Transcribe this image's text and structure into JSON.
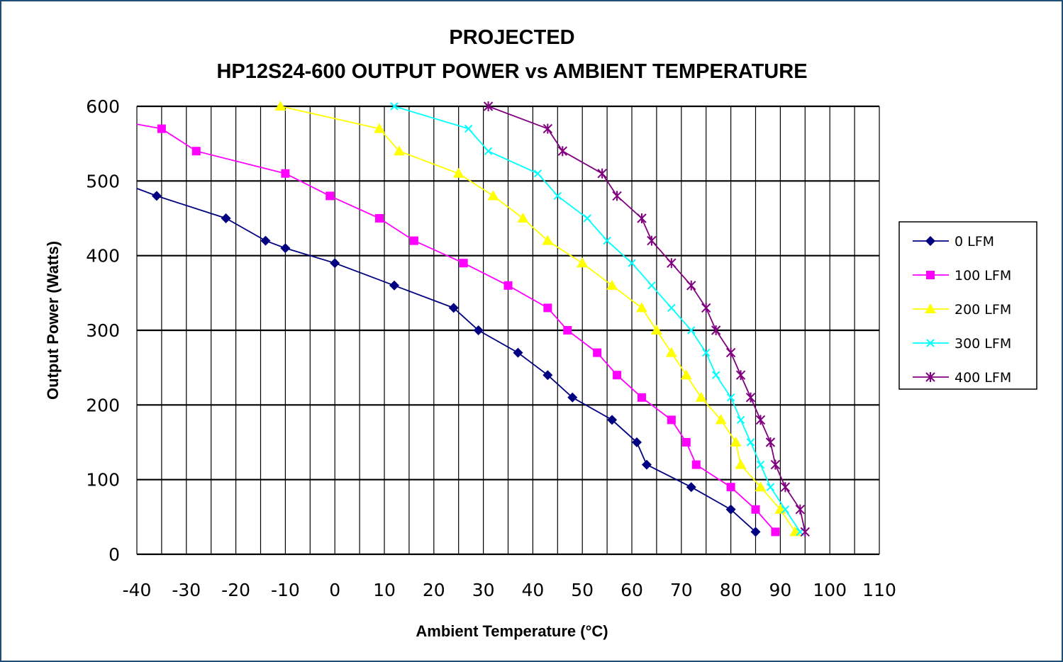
{
  "chart_data": {
    "type": "line",
    "title": [
      "PROJECTED",
      "HP12S24-600 OUTPUT POWER vs AMBIENT TEMPERATURE"
    ],
    "xlabel": "Ambient Temperature (°C)",
    "ylabel": "Output Power (Watts)",
    "xlim": [
      -40,
      110
    ],
    "ylim": [
      0,
      600
    ],
    "x_major_step": 10,
    "x_minor_step": 5,
    "y_major_step": 100,
    "x_ticks": [
      "-40",
      "-30",
      "-20",
      "-10",
      "0",
      "10",
      "20",
      "30",
      "40",
      "50",
      "60",
      "70",
      "80",
      "90",
      "100",
      "110"
    ],
    "y_ticks": [
      "0",
      "100",
      "200",
      "300",
      "400",
      "500",
      "600"
    ],
    "grid": true,
    "legend_position": "right",
    "series": [
      {
        "name": "0 LFM",
        "color": "#000080",
        "marker": "diamond",
        "points": [
          [
            -40,
            490
          ],
          [
            -36,
            480
          ],
          [
            -22,
            450
          ],
          [
            -14,
            420
          ],
          [
            -10,
            410
          ],
          [
            0,
            390
          ],
          [
            12,
            360
          ],
          [
            24,
            330
          ],
          [
            29,
            300
          ],
          [
            37,
            270
          ],
          [
            43,
            240
          ],
          [
            48,
            210
          ],
          [
            56,
            180
          ],
          [
            61,
            150
          ],
          [
            63,
            120
          ],
          [
            72,
            90
          ],
          [
            80,
            60
          ],
          [
            85,
            30
          ]
        ]
      },
      {
        "name": "100 LFM",
        "color": "#ff00ff",
        "marker": "square",
        "points": [
          [
            -40,
            576
          ],
          [
            -35,
            570
          ],
          [
            -28,
            540
          ],
          [
            -10,
            510
          ],
          [
            -1,
            480
          ],
          [
            9,
            450
          ],
          [
            16,
            420
          ],
          [
            26,
            390
          ],
          [
            35,
            360
          ],
          [
            43,
            330
          ],
          [
            47,
            300
          ],
          [
            53,
            270
          ],
          [
            57,
            240
          ],
          [
            62,
            210
          ],
          [
            68,
            180
          ],
          [
            71,
            150
          ],
          [
            73,
            120
          ],
          [
            80,
            90
          ],
          [
            85,
            60
          ],
          [
            89,
            30
          ]
        ]
      },
      {
        "name": "200 LFM",
        "color": "#ffff00",
        "marker": "triangle",
        "points": [
          [
            -11,
            600
          ],
          [
            9,
            570
          ],
          [
            13,
            540
          ],
          [
            25,
            510
          ],
          [
            32,
            480
          ],
          [
            38,
            450
          ],
          [
            43,
            420
          ],
          [
            50,
            390
          ],
          [
            56,
            360
          ],
          [
            62,
            330
          ],
          [
            65,
            300
          ],
          [
            68,
            270
          ],
          [
            71,
            240
          ],
          [
            74,
            210
          ],
          [
            78,
            180
          ],
          [
            81,
            150
          ],
          [
            82,
            120
          ],
          [
            86,
            90
          ],
          [
            90,
            60
          ],
          [
            93,
            30
          ]
        ]
      },
      {
        "name": "300 LFM",
        "color": "#00ffff",
        "marker": "x",
        "points": [
          [
            12,
            600
          ],
          [
            27,
            570
          ],
          [
            31,
            540
          ],
          [
            41,
            510
          ],
          [
            45,
            480
          ],
          [
            51,
            450
          ],
          [
            55,
            420
          ],
          [
            60,
            390
          ],
          [
            64,
            360
          ],
          [
            68,
            330
          ],
          [
            72,
            300
          ],
          [
            75,
            270
          ],
          [
            77,
            240
          ],
          [
            80,
            210
          ],
          [
            82,
            180
          ],
          [
            84,
            150
          ],
          [
            86,
            120
          ],
          [
            88,
            90
          ],
          [
            91,
            60
          ],
          [
            94,
            30
          ]
        ]
      },
      {
        "name": "400 LFM",
        "color": "#800080",
        "marker": "star",
        "points": [
          [
            31,
            600
          ],
          [
            43,
            570
          ],
          [
            46,
            540
          ],
          [
            54,
            510
          ],
          [
            57,
            480
          ],
          [
            62,
            450
          ],
          [
            64,
            420
          ],
          [
            68,
            390
          ],
          [
            72,
            360
          ],
          [
            75,
            330
          ],
          [
            77,
            300
          ],
          [
            80,
            270
          ],
          [
            82,
            240
          ],
          [
            84,
            210
          ],
          [
            86,
            180
          ],
          [
            88,
            150
          ],
          [
            89,
            120
          ],
          [
            91,
            90
          ],
          [
            94,
            60
          ],
          [
            95,
            30
          ]
        ]
      }
    ]
  }
}
